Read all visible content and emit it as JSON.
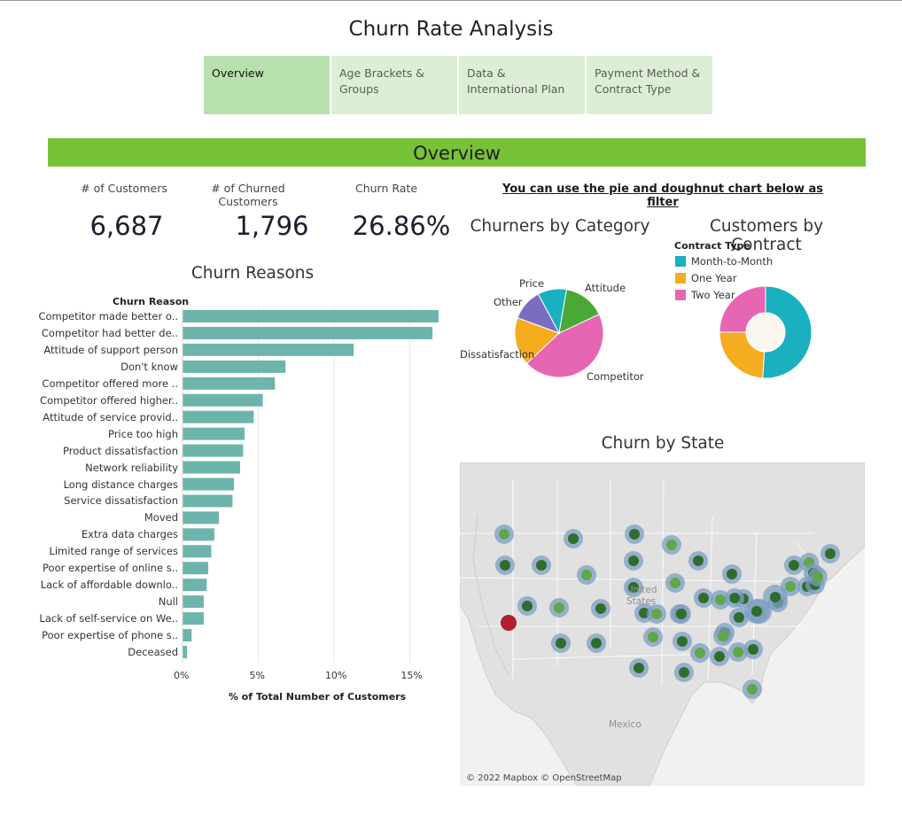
{
  "title": "Churn Rate Analysis",
  "tabs": [
    {
      "label": "Overview"
    },
    {
      "label": "Age Brackets & Groups"
    },
    {
      "label": "Data & International Plan"
    },
    {
      "label": "Payment Method & Contract Type"
    }
  ],
  "section_banner": "Overview",
  "kpis": {
    "customers_label": "# of Customers",
    "customers_value": "6,687",
    "churned_label": "# of Churned Customers",
    "churned_value": "1,796",
    "rate_label": "Churn Rate",
    "rate_value": "26.86%"
  },
  "filter_note": "You can use the pie and doughnut chart below as filter",
  "colors": {
    "banner": "#77c236",
    "tab_active": "#b9e1ad",
    "tab_inactive": "#dcefd5",
    "bar": "#6db4ac",
    "map_dot_green": "#5ea84a",
    "map_dot_dark": "#2f6d2c",
    "map_halo": "#7c9ec3",
    "map_highlight": "#b21f2d"
  },
  "chart_data": [
    {
      "type": "pie",
      "title": "Churners by Category",
      "categories": [
        "Competitor",
        "Dissatisfaction",
        "Other",
        "Price",
        "Attitude"
      ],
      "values": [
        45.0,
        17.6,
        11.6,
        10.5,
        15.3
      ],
      "colors": [
        "#e766b3",
        "#f5ac1f",
        "#7a6dc1",
        "#1ab0bf",
        "#4aa837"
      ]
    },
    {
      "type": "pie",
      "subtype": "doughnut",
      "title": "Customers by Contract",
      "legend_title": "Contract Type",
      "categories": [
        "Month-to-Month",
        "One Year",
        "Two Year"
      ],
      "values": [
        51,
        24,
        25
      ],
      "colors": [
        "#1ab0bf",
        "#f5ac1f",
        "#e766b3"
      ],
      "legend_position": "top-left"
    },
    {
      "type": "bar",
      "orientation": "horizontal",
      "title": "Churn Reasons",
      "ylabel": "Churn Reason",
      "xlabel": "% of Total Number of Customers",
      "categories": [
        "Competitor made better o..",
        "Competitor had better de..",
        "Attitude of support person",
        "Don't know",
        "Competitor offered more ..",
        "Competitor offered higher..",
        "Attitude of service provid..",
        "Price too high",
        "Product dissatisfaction",
        "Network reliability",
        "Long distance charges",
        "Service dissatisfaction",
        "Moved",
        "Extra data charges",
        "Limited range of services",
        "Poor expertise of online s..",
        "Lack of affordable downlo..",
        "Null",
        "Lack of self-service on We..",
        "Poor expertise of phone s..",
        "Deceased"
      ],
      "values": [
        16.9,
        16.5,
        11.3,
        6.8,
        6.1,
        5.3,
        4.7,
        4.1,
        4.0,
        3.8,
        3.4,
        3.3,
        2.4,
        2.1,
        1.9,
        1.7,
        1.6,
        1.4,
        1.4,
        0.6,
        0.3
      ],
      "xlim": [
        0,
        17.9
      ],
      "xticks": [
        0,
        5,
        10,
        15
      ],
      "xtick_labels": [
        "0%",
        "5%",
        "10%",
        "15%"
      ]
    }
  ],
  "map": {
    "title": "Churn by State",
    "label_united_states_line1": "United",
    "label_united_states_line2": "States",
    "label_mexico": "Mexico",
    "credit": "© 2022 Mapbox © OpenStreetMap"
  }
}
